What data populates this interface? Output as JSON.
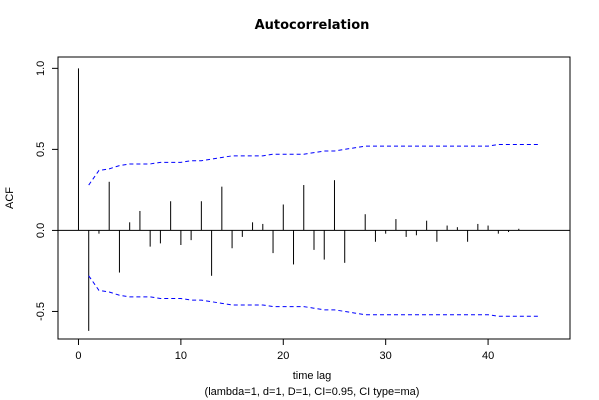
{
  "chart_data": {
    "type": "bar",
    "title": "Autocorrelation",
    "xlabel": "time lag",
    "subtitle": "(lambda=1, d=1, D=1, CI=0.95, CI type=ma)",
    "ylabel": "ACF",
    "xlim": [
      -2,
      48
    ],
    "ylim": [
      -0.67,
      1.07
    ],
    "x_ticks": [
      0,
      10,
      20,
      30,
      40
    ],
    "y_ticks": [
      -0.5,
      0.0,
      0.5,
      1.0
    ],
    "x_tick_labels": [
      "0",
      "10",
      "20",
      "30",
      "40"
    ],
    "y_tick_labels": [
      "-0.5",
      "0.0",
      "0.5",
      "1.0"
    ],
    "grid": false,
    "colors": {
      "bars": "#000000",
      "ci": "#0000ff",
      "zero_line": "#000000"
    },
    "series": [
      {
        "x": [
          0,
          1,
          2,
          3,
          4,
          5,
          6,
          7,
          8,
          9,
          10,
          11,
          12,
          13,
          14,
          15,
          16,
          17,
          18,
          19,
          20,
          21,
          22,
          23,
          24,
          25,
          26,
          27,
          28,
          29,
          30,
          31,
          32,
          33,
          34,
          35,
          36,
          37,
          38,
          39,
          40,
          41,
          42,
          43,
          44,
          45
        ],
        "values": [
          1.0,
          -0.62,
          -0.02,
          0.3,
          -0.26,
          0.05,
          0.12,
          -0.1,
          -0.08,
          0.18,
          -0.09,
          -0.06,
          0.18,
          -0.28,
          0.27,
          -0.11,
          -0.04,
          0.05,
          0.04,
          -0.14,
          0.16,
          -0.21,
          0.28,
          -0.12,
          -0.18,
          0.31,
          -0.2,
          0.0,
          0.1,
          -0.07,
          -0.02,
          0.07,
          -0.04,
          -0.03,
          0.06,
          -0.07,
          0.03,
          0.02,
          -0.07,
          0.04,
          0.03,
          -0.02,
          -0.01,
          0.01,
          0.0,
          0.0
        ]
      }
    ],
    "ci_upper": {
      "x": [
        1,
        2,
        3,
        4,
        5,
        6,
        7,
        8,
        9,
        10,
        11,
        12,
        13,
        14,
        15,
        16,
        17,
        18,
        19,
        20,
        21,
        22,
        23,
        24,
        25,
        26,
        27,
        28,
        29,
        30,
        31,
        32,
        33,
        34,
        35,
        36,
        37,
        38,
        39,
        40,
        41,
        42,
        43,
        44,
        45
      ],
      "values": [
        0.28,
        0.37,
        0.38,
        0.4,
        0.41,
        0.41,
        0.41,
        0.42,
        0.42,
        0.42,
        0.43,
        0.43,
        0.44,
        0.45,
        0.46,
        0.46,
        0.46,
        0.46,
        0.47,
        0.47,
        0.47,
        0.47,
        0.48,
        0.49,
        0.49,
        0.5,
        0.51,
        0.52,
        0.52,
        0.52,
        0.52,
        0.52,
        0.52,
        0.52,
        0.52,
        0.52,
        0.52,
        0.52,
        0.52,
        0.52,
        0.53,
        0.53,
        0.53,
        0.53,
        0.53
      ]
    },
    "ci_lower": {
      "x": [
        1,
        2,
        3,
        4,
        5,
        6,
        7,
        8,
        9,
        10,
        11,
        12,
        13,
        14,
        15,
        16,
        17,
        18,
        19,
        20,
        21,
        22,
        23,
        24,
        25,
        26,
        27,
        28,
        29,
        30,
        31,
        32,
        33,
        34,
        35,
        36,
        37,
        38,
        39,
        40,
        41,
        42,
        43,
        44,
        45
      ],
      "values": [
        -0.28,
        -0.37,
        -0.38,
        -0.4,
        -0.41,
        -0.41,
        -0.41,
        -0.42,
        -0.42,
        -0.42,
        -0.43,
        -0.43,
        -0.44,
        -0.45,
        -0.46,
        -0.46,
        -0.46,
        -0.46,
        -0.47,
        -0.47,
        -0.47,
        -0.47,
        -0.48,
        -0.49,
        -0.49,
        -0.5,
        -0.51,
        -0.52,
        -0.52,
        -0.52,
        -0.52,
        -0.52,
        -0.52,
        -0.52,
        -0.52,
        -0.52,
        -0.52,
        -0.52,
        -0.52,
        -0.52,
        -0.53,
        -0.53,
        -0.53,
        -0.53,
        -0.53
      ]
    }
  }
}
